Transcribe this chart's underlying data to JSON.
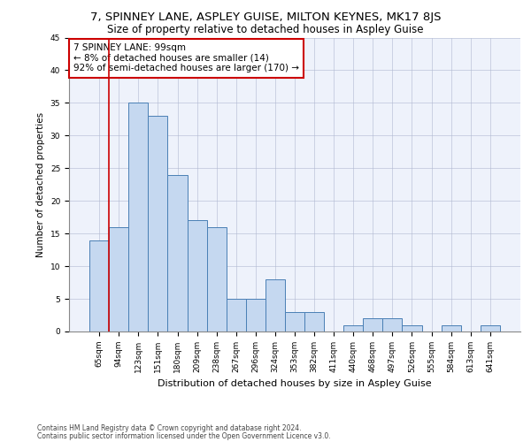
{
  "title": "7, SPINNEY LANE, ASPLEY GUISE, MILTON KEYNES, MK17 8JS",
  "subtitle": "Size of property relative to detached houses in Aspley Guise",
  "xlabel": "Distribution of detached houses by size in Aspley Guise",
  "ylabel": "Number of detached properties",
  "footer1": "Contains HM Land Registry data © Crown copyright and database right 2024.",
  "footer2": "Contains public sector information licensed under the Open Government Licence v3.0.",
  "categories": [
    "65sqm",
    "94sqm",
    "123sqm",
    "151sqm",
    "180sqm",
    "209sqm",
    "238sqm",
    "267sqm",
    "296sqm",
    "324sqm",
    "353sqm",
    "382sqm",
    "411sqm",
    "440sqm",
    "468sqm",
    "497sqm",
    "526sqm",
    "555sqm",
    "584sqm",
    "613sqm",
    "641sqm"
  ],
  "values": [
    14,
    16,
    35,
    33,
    24,
    17,
    16,
    5,
    5,
    8,
    3,
    3,
    0,
    1,
    2,
    2,
    1,
    0,
    1,
    0,
    1
  ],
  "bar_color": "#c5d8f0",
  "bar_edge_color": "#4a7fb5",
  "vline_color": "#cc0000",
  "vline_pos": 0.5,
  "annotation_line1": "7 SPINNEY LANE: 99sqm",
  "annotation_line2": "← 8% of detached houses are smaller (14)",
  "annotation_line3": "92% of semi-detached houses are larger (170) →",
  "annotation_box_color": "#cc0000",
  "ylim": [
    0,
    45
  ],
  "yticks": [
    0,
    5,
    10,
    15,
    20,
    25,
    30,
    35,
    40,
    45
  ],
  "grid_color": "#b0b8d0",
  "bg_color": "#eef2fb",
  "title_fontsize": 9.5,
  "subtitle_fontsize": 8.5,
  "annotation_fontsize": 7.5,
  "ylabel_fontsize": 7.5,
  "xlabel_fontsize": 8,
  "tick_fontsize": 6.5,
  "footer_fontsize": 5.5
}
